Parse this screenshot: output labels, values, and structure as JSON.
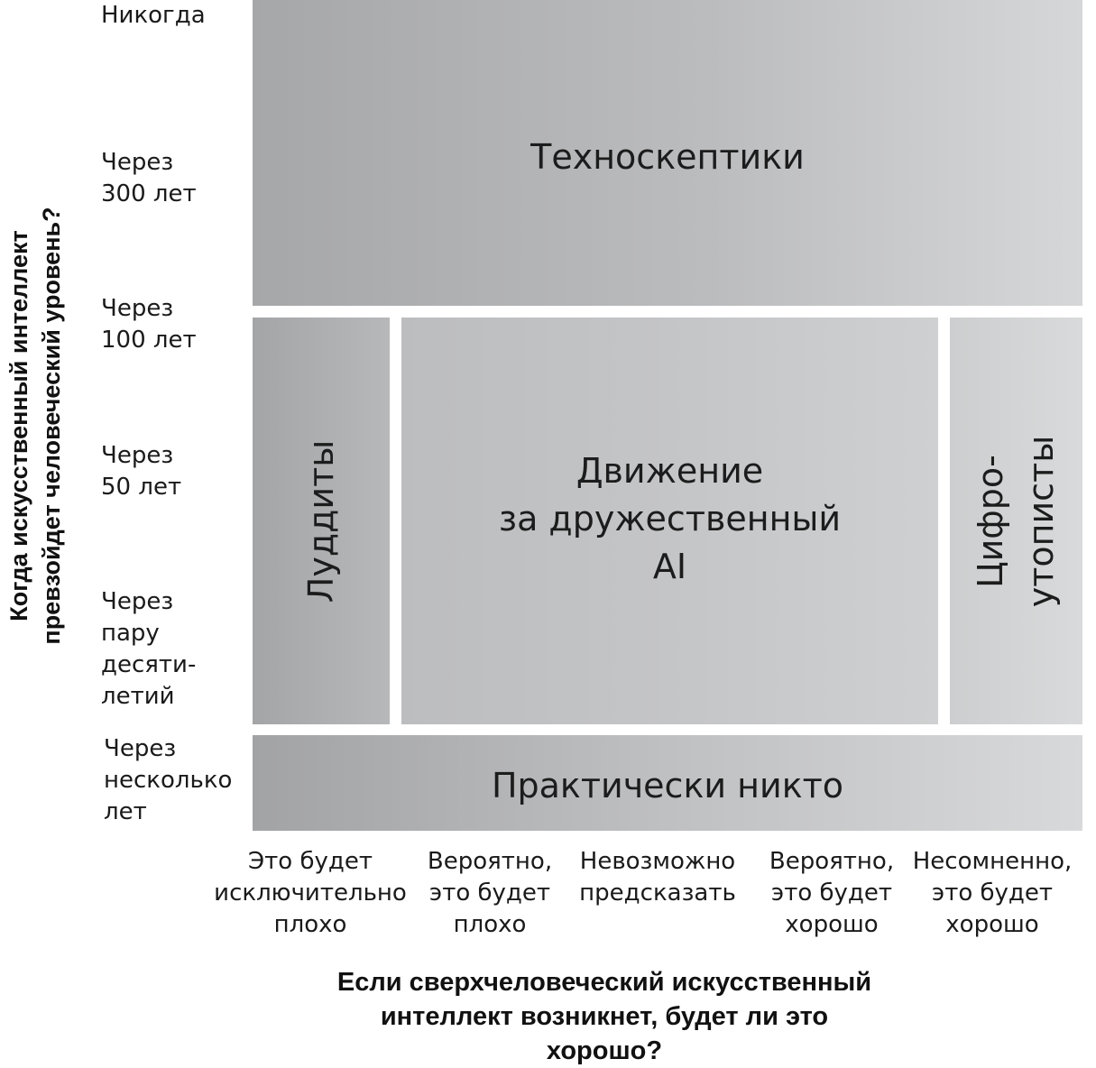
{
  "y_axis": {
    "title": "Когда искусственный интеллект\nпревзойдет человеческий уровень?",
    "ticks": [
      "Никогда",
      "Через\n300 лет",
      "Через\n100 лет",
      "Через\n50 лет",
      "Через\nпару\nдесяти-\nлетий",
      "Через\nнесколько\nлет"
    ]
  },
  "x_axis": {
    "title": "Если сверхчеловеческий искусственный\nинтеллект возникнет, будет ли это хорошо?",
    "ticks": [
      "Это будет\nисключительно\nплохо",
      "Вероятно,\nэто будет\nплохо",
      "Невозможно\nпредсказать",
      "Вероятно,\nэто будет\nхорошо",
      "Несомненно,\nэто будет\nхорошо"
    ]
  },
  "regions": {
    "techno_skeptics": "Техноскептики",
    "luddites": "Луддиты",
    "friendly_ai": "Движение\nза дружественный\nAI",
    "digital_utopians": "Цифро-\nутописты",
    "virtually_nobody": "Практически никто"
  },
  "colors": {
    "region_dark": "#a4a5a7",
    "region_light": "#d8d9da",
    "text": "#1a1a1a"
  }
}
